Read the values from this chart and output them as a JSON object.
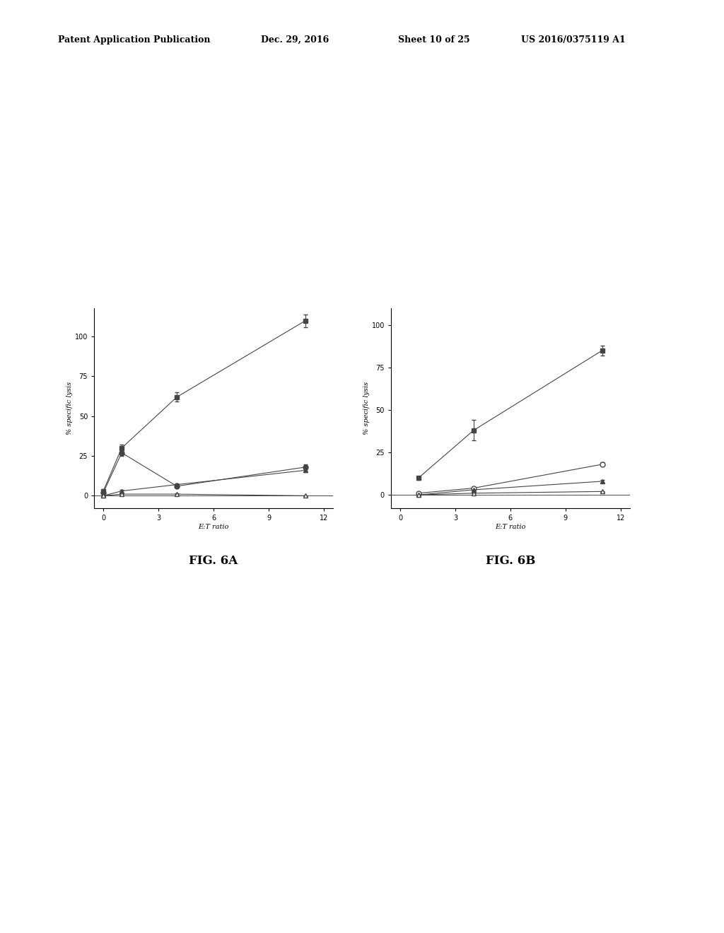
{
  "fig6a": {
    "series": [
      {
        "x": [
          0,
          1,
          4,
          11
        ],
        "y": [
          3,
          30,
          62,
          110
        ],
        "yerr": [
          1,
          2,
          3,
          4
        ],
        "marker": "s",
        "fillstyle": "full",
        "color": "#444444",
        "markersize": 5,
        "label": "filled_square"
      },
      {
        "x": [
          0,
          1,
          4,
          11
        ],
        "y": [
          2,
          27,
          6,
          18
        ],
        "yerr": [
          0.5,
          2,
          1,
          1.5
        ],
        "marker": "o",
        "fillstyle": "full",
        "color": "#444444",
        "markersize": 5,
        "label": "filled_circle"
      },
      {
        "x": [
          0,
          1,
          4,
          11
        ],
        "y": [
          0,
          3,
          7,
          16
        ],
        "yerr": [
          0.3,
          0.5,
          0.8,
          1.0
        ],
        "marker": "^",
        "fillstyle": "full",
        "color": "#444444",
        "markersize": 5,
        "label": "filled_triangle"
      },
      {
        "x": [
          0,
          1,
          4,
          11
        ],
        "y": [
          0,
          1,
          1,
          0
        ],
        "yerr": [
          0.2,
          0.4,
          0.3,
          0.2
        ],
        "marker": "^",
        "fillstyle": "none",
        "color": "#444444",
        "markersize": 5,
        "label": "open_triangle"
      }
    ],
    "ylabel": "% specific lysis",
    "xlabel": "E:T ratio",
    "ylim": [
      -8,
      118
    ],
    "yticks": [
      0,
      25,
      50,
      75,
      100
    ],
    "xticks": [
      0,
      3,
      6,
      9,
      12
    ],
    "title": "FIG. 6A"
  },
  "fig6b": {
    "series": [
      {
        "x": [
          1,
          4,
          11
        ],
        "y": [
          10,
          38,
          85
        ],
        "yerr": [
          1,
          6,
          3
        ],
        "marker": "s",
        "fillstyle": "full",
        "color": "#444444",
        "markersize": 5,
        "label": "filled_square"
      },
      {
        "x": [
          1,
          4,
          11
        ],
        "y": [
          1,
          4,
          18
        ],
        "yerr": [
          0.3,
          0.5,
          1.0
        ],
        "marker": "o",
        "fillstyle": "none",
        "color": "#444444",
        "markersize": 5,
        "label": "open_circle"
      },
      {
        "x": [
          1,
          4,
          11
        ],
        "y": [
          0,
          3,
          8
        ],
        "yerr": [
          0.2,
          0.4,
          0.8
        ],
        "marker": "^",
        "fillstyle": "full",
        "color": "#444444",
        "markersize": 5,
        "label": "filled_triangle"
      },
      {
        "x": [
          1,
          4,
          11
        ],
        "y": [
          0,
          1,
          2
        ],
        "yerr": [
          0.2,
          0.3,
          0.3
        ],
        "marker": "^",
        "fillstyle": "none",
        "color": "#444444",
        "markersize": 5,
        "label": "open_triangle"
      }
    ],
    "ylabel": "% specific lysis",
    "xlabel": "E:T ratio",
    "ylim": [
      -8,
      110
    ],
    "yticks": [
      0,
      25,
      50,
      75,
      100
    ],
    "xticks": [
      0,
      3,
      6,
      9,
      12
    ],
    "title": "FIG. 6B"
  },
  "background_color": "#ffffff",
  "header_line1": "Patent Application Publication",
  "header_line2": "Dec. 29, 2016",
  "header_line3": "Sheet 10 of 25",
  "header_line4": "US 2016/0375119 A1",
  "fig_label_fontsize": 12,
  "axis_label_fontsize": 7,
  "tick_fontsize": 7
}
